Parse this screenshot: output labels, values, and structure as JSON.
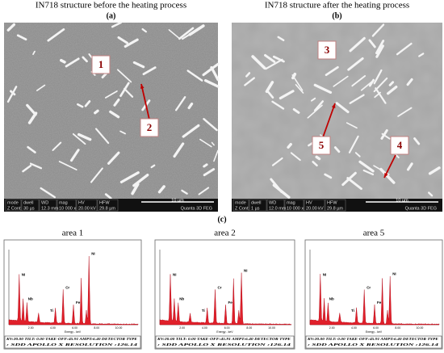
{
  "panels": [
    {
      "title": "IN718 structure before the heating process",
      "label": "(a)",
      "markers": [
        "1",
        "2"
      ],
      "info": {
        "headers": [
          "mode",
          "dwell",
          "WD",
          "mag",
          "HV",
          "HFW"
        ],
        "values": [
          "Z Cont",
          "30 µs",
          "12.3 mm",
          "10 000 x",
          "20.00 kV",
          "29.8 µm"
        ],
        "scale": "10 µm",
        "instrument": "Quanta 3D FEG"
      }
    },
    {
      "title": "IN718 structure after the heating process",
      "label": "(b)",
      "markers": [
        "3",
        "5",
        "4"
      ],
      "info": {
        "headers": [
          "mode",
          "dwell",
          "WD",
          "mag",
          "HV",
          "HFW"
        ],
        "values": [
          "Z Cont",
          "1 µs",
          "12.0 mm",
          "10 000 x",
          "20.00 kV",
          "29.8 µm"
        ],
        "scale": "10 µm",
        "instrument": "Quanta 3D FEG"
      }
    }
  ],
  "spectra": {
    "label": "(c)",
    "items": [
      {
        "title": "area 1",
        "elements": [
          "Ni",
          "Nb",
          "Ti",
          "Cr",
          "Fe",
          "Ni"
        ]
      },
      {
        "title": "area 2",
        "elements": [
          "Ni",
          "Nb",
          "Ti",
          "Cr",
          "Fe",
          "Ni"
        ]
      },
      {
        "title": "area 5",
        "elements": [
          "Ni",
          "Nb",
          "Ti",
          "Cr",
          "Fe",
          "Ni"
        ]
      }
    ],
    "axis": [
      "2.00",
      "4.00",
      "6.00",
      "8.00",
      "10.00"
    ],
    "axis_title": "Energy - keV",
    "footer": [
      "KV:20.00  TILT: 0.00  TAKE-OFF:45.91  AMPT:6.40  DETECTOR TYPE",
      ": SDD APOLLO X   RESOLUTION :126.14"
    ]
  }
}
